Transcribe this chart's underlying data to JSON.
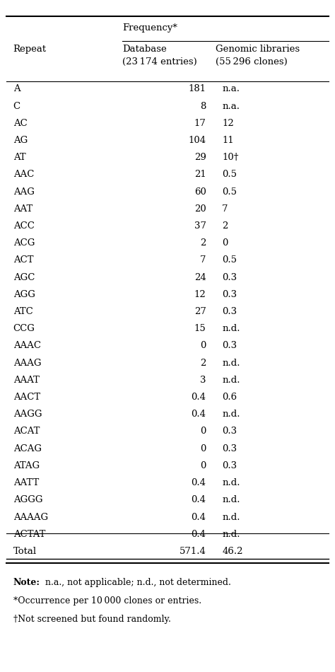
{
  "col_header_1": "Repeat",
  "col_header_2": "Database\n(23 174 entries)",
  "col_header_3": "Genomic libraries\n(55 296 clones)",
  "super_header": "Frequency*",
  "rows": [
    [
      "A",
      "181",
      "n.a."
    ],
    [
      "C",
      "8",
      "n.a."
    ],
    [
      "AC",
      "17",
      "12"
    ],
    [
      "AG",
      "104",
      "11"
    ],
    [
      "AT",
      "29",
      "10†"
    ],
    [
      "AAC",
      "21",
      "0.5"
    ],
    [
      "AAG",
      "60",
      "0.5"
    ],
    [
      "AAT",
      "20",
      "7"
    ],
    [
      "ACC",
      "37",
      "2"
    ],
    [
      "ACG",
      "2",
      "0"
    ],
    [
      "ACT",
      "7",
      "0.5"
    ],
    [
      "AGC",
      "24",
      "0.3"
    ],
    [
      "AGG",
      "12",
      "0.3"
    ],
    [
      "ATC",
      "27",
      "0.3"
    ],
    [
      "CCG",
      "15",
      "n.d."
    ],
    [
      "AAAC",
      "0",
      "0.3"
    ],
    [
      "AAAG",
      "2",
      "n.d."
    ],
    [
      "AAAT",
      "3",
      "n.d."
    ],
    [
      "AACT",
      "0.4",
      "0.6"
    ],
    [
      "AAGG",
      "0.4",
      "n.d."
    ],
    [
      "ACAT",
      "0",
      "0.3"
    ],
    [
      "ACAG",
      "0",
      "0.3"
    ],
    [
      "ATAG",
      "0",
      "0.3"
    ],
    [
      "AATT",
      "0.4",
      "n.d."
    ],
    [
      "AGGG",
      "0.4",
      "n.d."
    ],
    [
      "AAAAG",
      "0.4",
      "n.d."
    ],
    [
      "ACTAT",
      "0.4",
      "n.d."
    ],
    [
      "Total",
      "571.4",
      "46.2"
    ]
  ],
  "note_bold": "Note:",
  "note_text": " n.a., not applicable; n.d., not determined.",
  "footnote1": "*Occurrence per 10 000 clones or entries.",
  "footnote2": "†Not screened but found randomly.",
  "bg_color": "#ffffff",
  "text_color": "#000000",
  "font_size": 9.5
}
